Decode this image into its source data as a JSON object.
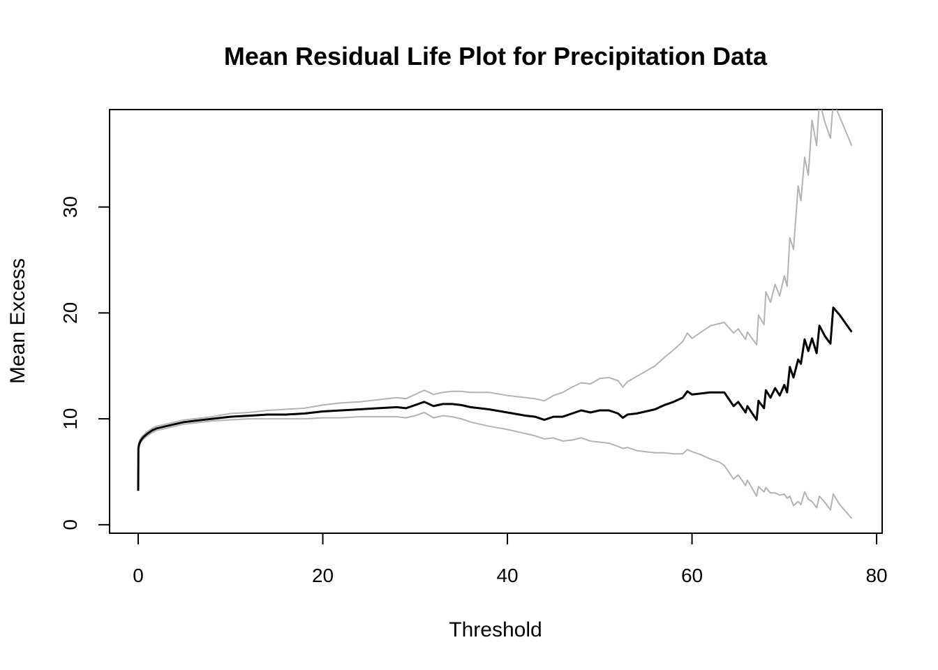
{
  "chart_data": {
    "type": "line",
    "title": "Mean Residual Life Plot for Precipitation Data",
    "xlabel": "Threshold",
    "ylabel": "Mean Excess",
    "xlim": [
      -3.1,
      80.6
    ],
    "ylim": [
      -0.8,
      39.2
    ],
    "x_ticks": [
      0,
      20,
      40,
      60,
      80
    ],
    "y_ticks": [
      0,
      10,
      20,
      30
    ],
    "grid": false,
    "legend": "none",
    "colors": {
      "mean": "#000000",
      "bounds": "#b3b3b3"
    },
    "series": [
      {
        "role": "mean",
        "x": [
          0,
          0.02,
          0.1,
          0.3,
          0.6,
          1,
          1.5,
          2,
          3,
          4,
          5,
          6,
          8,
          10,
          12,
          14,
          16,
          18,
          20,
          22,
          24,
          26,
          28,
          29,
          30,
          31,
          32,
          33,
          34,
          35,
          36,
          38,
          40,
          42,
          43,
          44,
          45,
          46,
          47,
          48,
          49,
          50,
          51,
          52,
          52.5,
          53,
          54,
          55,
          56,
          57,
          58,
          59,
          59.5,
          60,
          61,
          62,
          63,
          63.5,
          64.5,
          65,
          65.8,
          66,
          67,
          67.2,
          67.8,
          68,
          68.5,
          69,
          69.5,
          70,
          70.3,
          70.6,
          71,
          71.5,
          71.8,
          72.2,
          72.6,
          73,
          73.5,
          73.8,
          74.4,
          75,
          75.3,
          76,
          77.3
        ],
        "y": [
          3.2,
          7.2,
          7.6,
          8.0,
          8.3,
          8.6,
          8.9,
          9.1,
          9.3,
          9.5,
          9.7,
          9.8,
          10.0,
          10.2,
          10.3,
          10.4,
          10.4,
          10.5,
          10.7,
          10.8,
          10.9,
          11.0,
          11.1,
          11.0,
          11.3,
          11.6,
          11.2,
          11.4,
          11.4,
          11.3,
          11.1,
          10.9,
          10.6,
          10.3,
          10.2,
          9.9,
          10.2,
          10.2,
          10.5,
          10.8,
          10.6,
          10.8,
          10.8,
          10.5,
          10.1,
          10.4,
          10.5,
          10.7,
          10.9,
          11.3,
          11.6,
          12.0,
          12.6,
          12.3,
          12.4,
          12.5,
          12.5,
          12.5,
          11.2,
          11.6,
          10.6,
          11.2,
          9.9,
          11.7,
          11.0,
          12.7,
          12.0,
          12.9,
          12.2,
          13.2,
          12.5,
          14.9,
          13.9,
          15.6,
          15.2,
          17.5,
          16.4,
          17.6,
          16.2,
          18.8,
          17.8,
          17.1,
          20.5,
          19.8,
          18.2
        ]
      },
      {
        "role": "upper",
        "x": [
          0,
          0.02,
          0.1,
          0.3,
          0.6,
          1,
          1.5,
          2,
          3,
          4,
          5,
          6,
          8,
          10,
          12,
          14,
          16,
          18,
          20,
          22,
          24,
          26,
          28,
          29,
          30,
          31,
          32,
          33,
          34,
          35,
          36,
          38,
          40,
          42,
          43,
          44,
          45,
          46,
          47,
          48,
          49,
          50,
          51,
          52,
          52.5,
          53,
          54,
          55,
          56,
          57,
          58,
          59,
          59.5,
          60,
          61,
          62,
          63,
          63.5,
          64.5,
          65,
          65.8,
          66,
          67,
          67.2,
          67.8,
          68,
          68.5,
          69,
          69.5,
          70,
          70.3,
          70.6,
          71,
          71.5,
          71.8,
          72.2,
          72.6,
          73,
          73.5,
          73.8,
          74.4,
          75,
          75.3,
          76,
          77.3
        ],
        "y": [
          3.2,
          7.4,
          7.8,
          8.2,
          8.5,
          8.8,
          9.1,
          9.3,
          9.5,
          9.7,
          9.9,
          10.0,
          10.2,
          10.5,
          10.6,
          10.8,
          10.9,
          11.0,
          11.3,
          11.5,
          11.6,
          11.8,
          12.0,
          11.9,
          12.3,
          12.7,
          12.3,
          12.5,
          12.6,
          12.6,
          12.5,
          12.5,
          12.2,
          12.0,
          11.9,
          11.7,
          12.2,
          12.5,
          13.0,
          13.4,
          13.3,
          13.8,
          13.9,
          13.6,
          13.0,
          13.5,
          14.0,
          14.5,
          15.0,
          15.8,
          16.5,
          17.3,
          18.1,
          17.6,
          18.2,
          18.8,
          19.0,
          19.1,
          18.1,
          18.5,
          17.5,
          18.2,
          17.0,
          19.8,
          18.9,
          22.0,
          21.0,
          22.7,
          21.6,
          23.5,
          22.5,
          27.1,
          26.0,
          32.0,
          30.6,
          34.7,
          33.0,
          38.2,
          35.8,
          40.0,
          38.0,
          36.5,
          40.0,
          38.5,
          35.8
        ]
      },
      {
        "role": "lower",
        "x": [
          0,
          0.02,
          0.1,
          0.3,
          0.6,
          1,
          1.5,
          2,
          3,
          4,
          5,
          6,
          8,
          10,
          12,
          14,
          16,
          18,
          20,
          22,
          24,
          26,
          28,
          29,
          30,
          31,
          32,
          33,
          34,
          35,
          36,
          38,
          40,
          42,
          43,
          44,
          45,
          46,
          47,
          48,
          49,
          50,
          51,
          52,
          52.5,
          53,
          54,
          55,
          56,
          57,
          58,
          59,
          59.5,
          60,
          61,
          62,
          63,
          63.5,
          64.5,
          65,
          65.8,
          66,
          67,
          67.2,
          67.8,
          68,
          68.5,
          69,
          69.5,
          70,
          70.3,
          70.6,
          71,
          71.5,
          71.8,
          72.2,
          72.6,
          73,
          73.5,
          73.8,
          74.4,
          75,
          75.3,
          76,
          77.3
        ],
        "y": [
          3.2,
          7.0,
          7.4,
          7.8,
          8.1,
          8.4,
          8.7,
          8.9,
          9.1,
          9.3,
          9.5,
          9.6,
          9.8,
          9.9,
          10.0,
          10.0,
          10.0,
          10.0,
          10.1,
          10.1,
          10.2,
          10.2,
          10.2,
          10.1,
          10.3,
          10.6,
          10.1,
          10.3,
          10.2,
          10.0,
          9.7,
          9.3,
          9.0,
          8.6,
          8.4,
          8.1,
          8.2,
          7.9,
          8.0,
          8.2,
          7.9,
          7.8,
          7.7,
          7.4,
          7.2,
          7.3,
          7.0,
          6.9,
          6.8,
          6.8,
          6.7,
          6.7,
          7.1,
          6.9,
          6.6,
          6.2,
          5.9,
          5.6,
          4.3,
          4.7,
          3.7,
          4.2,
          2.7,
          3.6,
          3.1,
          3.5,
          3.0,
          3.0,
          2.8,
          2.9,
          2.5,
          2.7,
          1.8,
          2.2,
          1.9,
          3.1,
          2.4,
          2.2,
          1.6,
          2.7,
          2.1,
          1.4,
          2.9,
          1.9,
          0.6
        ]
      }
    ]
  }
}
